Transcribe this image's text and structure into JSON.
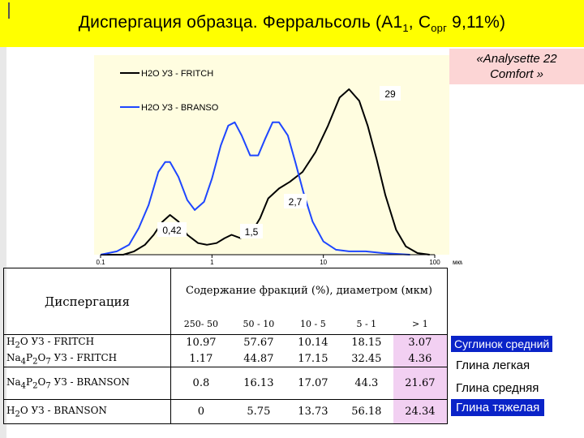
{
  "title": {
    "main": "Диспергация образца. Ферральсоль (А1",
    "sub1": "1",
    "mid": ", С",
    "sub2": "орг",
    "end": " 9,11%)"
  },
  "instrument": {
    "line1": "«Analysette 22",
    "line2": "Comfort »"
  },
  "chart_data": {
    "type": "line",
    "xscale": "log",
    "xlim": [
      0.1,
      100
    ],
    "xticks": [
      "0.1",
      "1",
      "10",
      "100"
    ],
    "xunit": "мкм",
    "grid": false,
    "legend_position": "top-left",
    "series": [
      {
        "name": "H2O УЗ - FRITCH",
        "color": "#000000",
        "points": [
          [
            0.1,
            0
          ],
          [
            0.16,
            0
          ],
          [
            0.2,
            0.02
          ],
          [
            0.25,
            0.06
          ],
          [
            0.3,
            0.12
          ],
          [
            0.36,
            0.2
          ],
          [
            0.42,
            0.24
          ],
          [
            0.5,
            0.2
          ],
          [
            0.6,
            0.12
          ],
          [
            0.75,
            0.07
          ],
          [
            0.9,
            0.06
          ],
          [
            1.1,
            0.07
          ],
          [
            1.3,
            0.1
          ],
          [
            1.5,
            0.12
          ],
          [
            1.8,
            0.1
          ],
          [
            2.2,
            0.12
          ],
          [
            2.7,
            0.22
          ],
          [
            3.2,
            0.34
          ],
          [
            4,
            0.4
          ],
          [
            5,
            0.44
          ],
          [
            6.5,
            0.5
          ],
          [
            8.5,
            0.62
          ],
          [
            11,
            0.78
          ],
          [
            14,
            0.95
          ],
          [
            17,
            1.0
          ],
          [
            21,
            0.93
          ],
          [
            25,
            0.78
          ],
          [
            30,
            0.58
          ],
          [
            36,
            0.36
          ],
          [
            45,
            0.15
          ],
          [
            55,
            0.05
          ],
          [
            70,
            0.01
          ],
          [
            90,
            0
          ]
        ]
      },
      {
        "name": "H2O УЗ - BRANSO",
        "color": "#1e46ff",
        "points": [
          [
            0.1,
            0
          ],
          [
            0.14,
            0.02
          ],
          [
            0.18,
            0.06
          ],
          [
            0.22,
            0.16
          ],
          [
            0.27,
            0.3
          ],
          [
            0.33,
            0.5
          ],
          [
            0.38,
            0.56
          ],
          [
            0.42,
            0.56
          ],
          [
            0.5,
            0.47
          ],
          [
            0.6,
            0.33
          ],
          [
            0.7,
            0.27
          ],
          [
            0.85,
            0.32
          ],
          [
            1.0,
            0.46
          ],
          [
            1.2,
            0.66
          ],
          [
            1.4,
            0.78
          ],
          [
            1.6,
            0.8
          ],
          [
            1.85,
            0.72
          ],
          [
            2.2,
            0.6
          ],
          [
            2.6,
            0.6
          ],
          [
            3.0,
            0.7
          ],
          [
            3.5,
            0.8
          ],
          [
            4.0,
            0.8
          ],
          [
            4.8,
            0.72
          ],
          [
            5.6,
            0.56
          ],
          [
            6.6,
            0.38
          ],
          [
            8,
            0.2
          ],
          [
            10,
            0.08
          ],
          [
            13,
            0.03
          ],
          [
            17,
            0.02
          ],
          [
            24,
            0.02
          ],
          [
            34,
            0.01
          ],
          [
            45,
            0.005
          ],
          [
            60,
            0
          ]
        ]
      }
    ],
    "annotations": [
      "29",
      "2,7",
      "0,42",
      "1,5"
    ]
  },
  "table": {
    "dispersion_header": "Диспергация",
    "content_header": "Содержание фракций (%), диаметром (мкм)",
    "columns": [
      "250- 50",
      "50 - 10",
      "10 - 5",
      "5 - 1",
      "> 1"
    ],
    "rows": [
      {
        "label1": "H",
        "sub1": "2",
        "label2": "O УЗ - FRITCH",
        "sub2": "",
        "label3": "",
        "sub3": "",
        "label4": "",
        "values": [
          "10.97",
          "57.67",
          "10.14",
          "18.15",
          "3.07"
        ]
      },
      {
        "label1": "Na",
        "sub1": "4",
        "label2": "P",
        "sub2": "2",
        "label3": "O",
        "sub3": "7",
        "label4": " УЗ - FRITCH",
        "values": [
          "1.17",
          "44.87",
          "17.15",
          "32.45",
          "4.36"
        ]
      },
      {
        "label1": "Na",
        "sub1": "4",
        "label2": "P",
        "sub2": "2",
        "label3": "O",
        "sub3": "7",
        "label4": " УЗ - BRANSON",
        "values": [
          "0.8",
          "16.13",
          "17.07",
          "44.3",
          "21.67"
        ]
      },
      {
        "label1": "H",
        "sub1": "2",
        "label2": "O УЗ - BRANSON",
        "sub2": "",
        "label3": "",
        "sub3": "",
        "label4": "",
        "values": [
          "0",
          "5.75",
          "13.73",
          "56.18",
          "24.34"
        ]
      }
    ]
  },
  "classes": [
    "Суглинок средний",
    "Глина легкая",
    "Глина средняя",
    "Глина тяжелая"
  ],
  "colors": {
    "title_bg": "#ffff00",
    "chart_bg": "#fffde0",
    "instrument_bg": "#fcd5d5",
    "pink_cell": "#f2d0f2",
    "class_badge": "#0a23c8",
    "line_fritch": "#000000",
    "line_branso": "#1e46ff"
  }
}
